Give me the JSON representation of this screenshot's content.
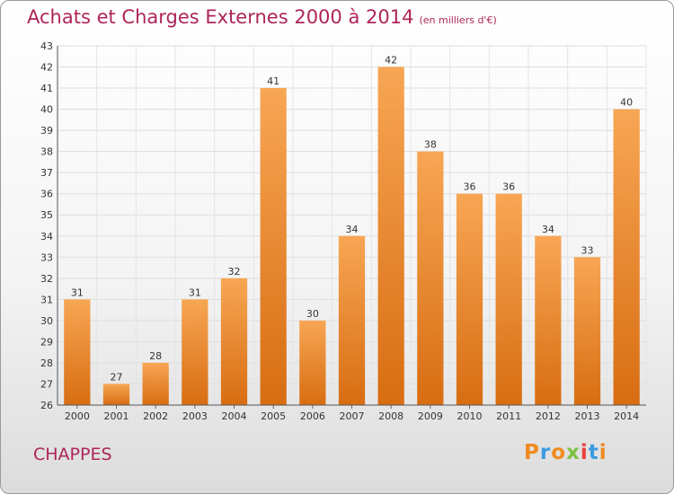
{
  "header": {
    "title": "Achats et Charges Externes 2000 à 2014",
    "unit": "(en milliers d'€)"
  },
  "footer": {
    "place": "CHAPPES",
    "logo": {
      "text": "Proxiti",
      "colors": [
        "#f08a1e",
        "#3a9be0",
        "#f08a1e",
        "#7cc242",
        "#e8413c",
        "#3a9be0",
        "#f08a1e"
      ]
    }
  },
  "colors": {
    "bar_light": "#f7a654",
    "bar_dark": "#d86d12",
    "title": "#ad2559"
  },
  "chart_data": {
    "type": "bar",
    "title": "Achats et Charges Externes 2000 à 2014",
    "subtitle": "(en milliers d'€)",
    "categories": [
      "2000",
      "2001",
      "2002",
      "2003",
      "2004",
      "2005",
      "2006",
      "2007",
      "2008",
      "2009",
      "2010",
      "2011",
      "2012",
      "2013",
      "2014"
    ],
    "values": [
      31,
      27,
      28,
      31,
      32,
      41,
      30,
      34,
      42,
      38,
      36,
      36,
      34,
      33,
      40
    ],
    "data_labels": [
      "31",
      "27",
      "28",
      "31",
      "32",
      "41",
      "30",
      "34",
      "42",
      "38",
      "36",
      "36",
      "34",
      "33",
      "40"
    ],
    "yticks": [
      "26",
      "27",
      "28",
      "29",
      "30",
      "31",
      "32",
      "33",
      "34",
      "35",
      "36",
      "37",
      "38",
      "39",
      "40",
      "41",
      "42",
      "43"
    ],
    "ylim": [
      26,
      43
    ],
    "grid": true,
    "xlabel": "",
    "ylabel": ""
  }
}
